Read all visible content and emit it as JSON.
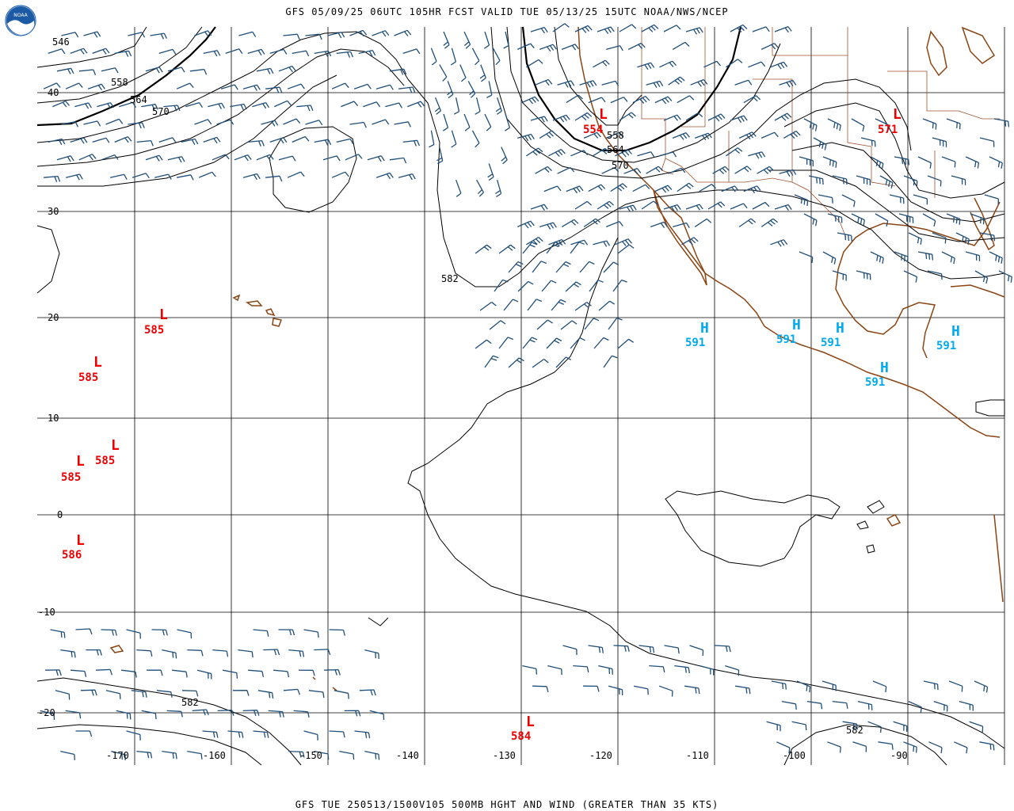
{
  "header": {
    "title": "GFS 05/09/25 06UTC 105HR FCST VALID TUE 05/13/25 15UTC NOAA/NWS/NCEP",
    "logo_text": "NOAA"
  },
  "footer": {
    "caption": "GFS TUE 250513/1500V105 500MB HGHT AND WIND (GREATER THAN 35 KTS)"
  },
  "colors": {
    "grid": "#000000",
    "coast": "#8b4513",
    "barb": "#1f4e79",
    "low": "#ee0000",
    "high": "#00aaee",
    "contour": "#000000"
  },
  "axes": {
    "latitude_labels": [
      "40",
      "30",
      "20",
      "10",
      "0",
      "-10",
      "-20"
    ],
    "longitude_labels": [
      "-170",
      "-160",
      "-150",
      "-140",
      "-130",
      "-120",
      "-110",
      "-100",
      "-90"
    ]
  },
  "contour_labels": [
    "546",
    "558",
    "564",
    "570",
    "558",
    "564",
    "570",
    "582",
    "582",
    "582"
  ],
  "lows": [
    {
      "letter": "L",
      "value": "554"
    },
    {
      "letter": "L",
      "value": "571"
    },
    {
      "letter": "L",
      "value": "585"
    },
    {
      "letter": "L",
      "value": "585"
    },
    {
      "letter": "L",
      "value": "585"
    },
    {
      "letter": "L",
      "value": "585"
    },
    {
      "letter": "L",
      "value": "586"
    },
    {
      "letter": "L",
      "value": "584"
    }
  ],
  "highs": [
    {
      "letter": "H",
      "value": "591"
    },
    {
      "letter": "H",
      "value": "591"
    },
    {
      "letter": "H",
      "value": "591"
    },
    {
      "letter": "H",
      "value": "591"
    },
    {
      "letter": "H",
      "value": "591"
    }
  ]
}
